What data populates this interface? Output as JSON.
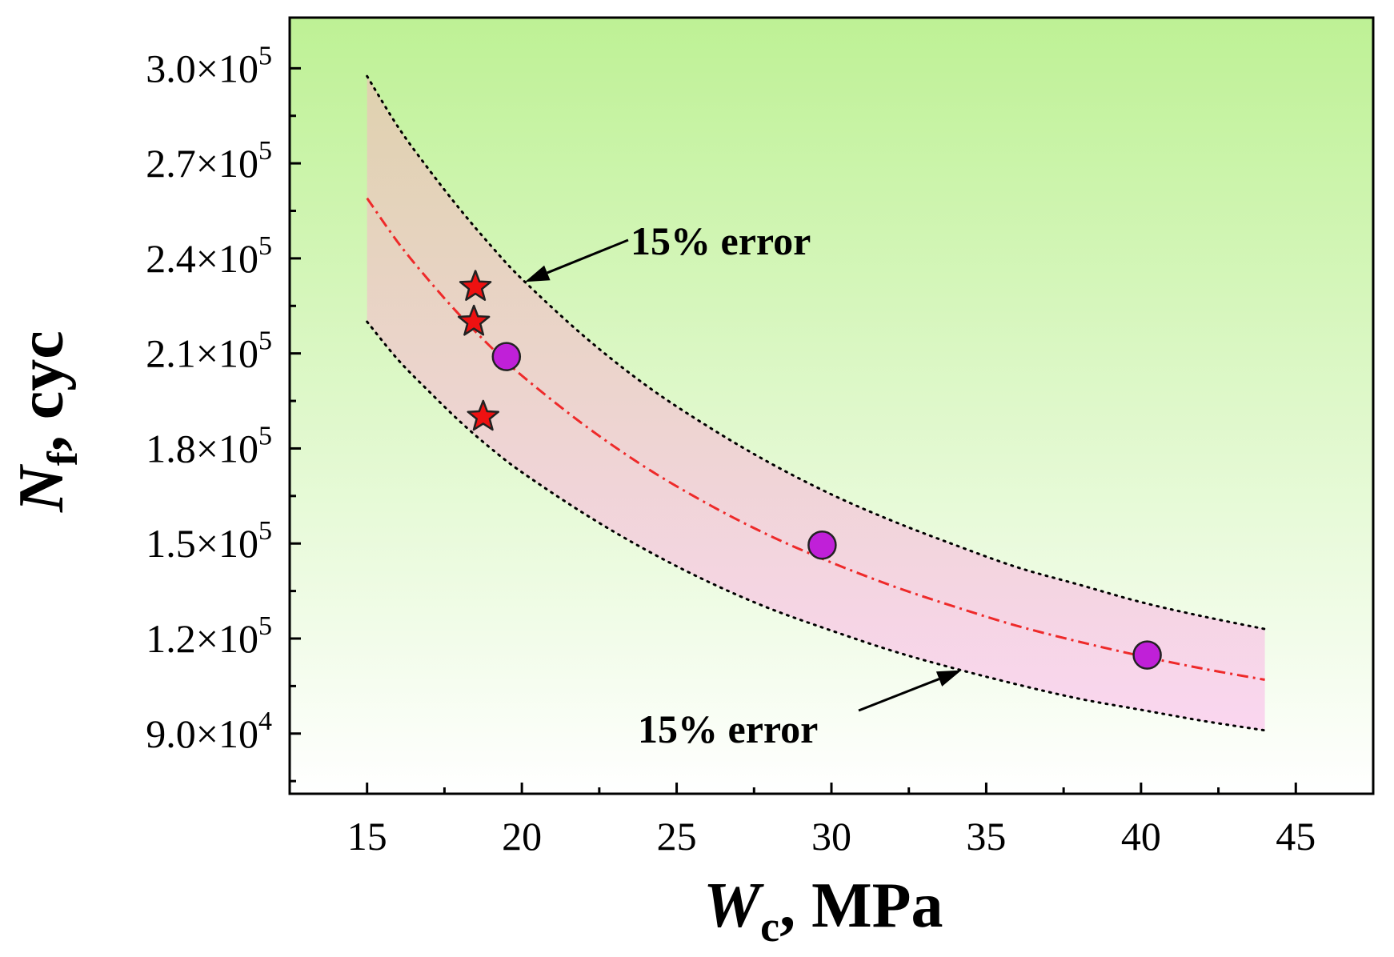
{
  "chart_data": {
    "type": "scatter",
    "title": "",
    "xlabel": {
      "main": "W",
      "sub": "c",
      "unit": ", MPa"
    },
    "ylabel": {
      "main": "N",
      "sub": "f",
      "unit": ", cyc"
    },
    "xlim": [
      12.5,
      47.5
    ],
    "ylim": [
      71000,
      316000
    ],
    "x_ticks": [
      15,
      20,
      25,
      30,
      35,
      40,
      45
    ],
    "x_tick_labels": [
      "15",
      "20",
      "25",
      "30",
      "35",
      "40",
      "45"
    ],
    "y_ticks": [
      90000,
      120000,
      150000,
      180000,
      210000,
      240000,
      270000,
      300000
    ],
    "y_tick_labels": [
      {
        "mant": "9.0×10",
        "exp": "4"
      },
      {
        "mant": "1.2×10",
        "exp": "5"
      },
      {
        "mant": "1.5×10",
        "exp": "5"
      },
      {
        "mant": "1.8×10",
        "exp": "5"
      },
      {
        "mant": "2.1×10",
        "exp": "5"
      },
      {
        "mant": "2.4×10",
        "exp": "5"
      },
      {
        "mant": "2.7×10",
        "exp": "5"
      },
      {
        "mant": "3.0×10",
        "exp": "5"
      }
    ],
    "fit_curve": {
      "name": "fit",
      "x": [
        15,
        16,
        17,
        18,
        19,
        20,
        22,
        24,
        26,
        28,
        30,
        32,
        34,
        36,
        38,
        40,
        42,
        44
      ],
      "y": [
        259000,
        245000,
        233000,
        222000,
        212000,
        203000,
        187500,
        174000,
        162500,
        152500,
        144000,
        136500,
        130000,
        124000,
        119000,
        114500,
        110500,
        107000
      ],
      "color": "#ee2a2a",
      "style": "dash-dot"
    },
    "error_band": {
      "label": "15% error",
      "upper": [
        297500,
        281500,
        268000,
        255500,
        244000,
        233500,
        215500,
        200000,
        187000,
        175500,
        165500,
        157000,
        149500,
        142500,
        137000,
        131500,
        127000,
        123000
      ],
      "lower": [
        220000,
        208000,
        198000,
        188500,
        180000,
        172500,
        159500,
        148000,
        138000,
        129500,
        122500,
        116000,
        110500,
        105500,
        101000,
        97500,
        94000,
        91000
      ],
      "fill_top": "#dfd2ae",
      "fill_bottom": "#fbd6f2"
    },
    "series": [
      {
        "name": "circles",
        "marker": "circle",
        "color": "#c020d8",
        "x": [
          19.5,
          29.7,
          40.2
        ],
        "y": [
          209000,
          149500,
          114800
        ]
      },
      {
        "name": "stars",
        "marker": "star",
        "color": "#ee1111",
        "x": [
          18.5,
          18.45,
          18.75
        ],
        "y": [
          231000,
          220000,
          190000
        ]
      }
    ],
    "annotations": [
      {
        "text": "15% error",
        "target": "upper"
      },
      {
        "text": "15% error",
        "target": "lower"
      }
    ],
    "background": {
      "top": "#bef195",
      "bottom": "#ffffff"
    }
  }
}
